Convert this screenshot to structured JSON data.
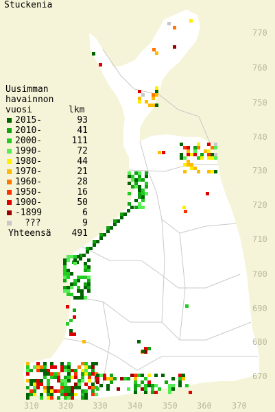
{
  "title": "Stuckenia",
  "legend": {
    "heading_lines": [
      "Uusimman",
      "havainnon"
    ],
    "col_year": "vuosi",
    "col_count": "lkm",
    "rows": [
      {
        "label": "2015-",
        "count": "93",
        "color": "#006400"
      },
      {
        "label": "2010-",
        "count": "41",
        "color": "#11a311"
      },
      {
        "label": "2000-",
        "count": "111",
        "color": "#22cc22"
      },
      {
        "label": "1990-",
        "count": "72",
        "color": "#55ee55"
      },
      {
        "label": "1980-",
        "count": "44",
        "color": "#ffee00"
      },
      {
        "label": "1970-",
        "count": "21",
        "color": "#ffbb00"
      },
      {
        "label": "1960-",
        "count": "28",
        "color": "#ff7700"
      },
      {
        "label": "1950-",
        "count": "16",
        "color": "#ff3300"
      },
      {
        "label": "1900-",
        "count": "50",
        "color": "#dd0000"
      },
      {
        "label": "-1899",
        "count": "6",
        "color": "#990000"
      },
      {
        "label": "???",
        "count": "9",
        "color": "#c8c8c8"
      }
    ],
    "total_label": "Yhteensä",
    "total_count": "491"
  },
  "axes": {
    "y_ticks": [
      "770",
      "760",
      "750",
      "740",
      "730",
      "720",
      "710",
      "700",
      "690",
      "680",
      "670"
    ],
    "x_ticks": [
      "310",
      "320",
      "330",
      "340",
      "350",
      "360",
      "370"
    ]
  },
  "colors": {
    "land": "#ffffff",
    "sea": "#f6f4d8",
    "borders": "#c8c8c8"
  }
}
